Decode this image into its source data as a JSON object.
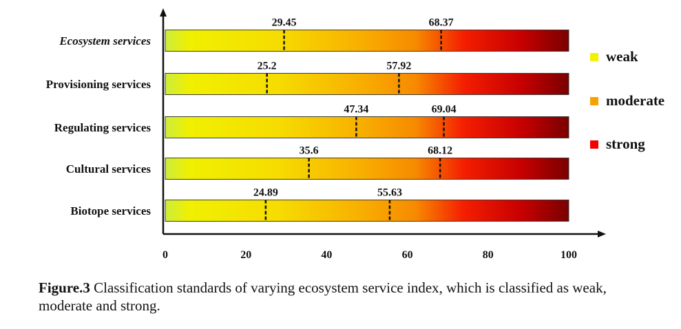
{
  "chart_data": {
    "type": "bar",
    "orientation": "horizontal",
    "categories": [
      "Ecosystem services",
      "Provisioning services",
      "Regulating services",
      "Cultural services",
      "Biotope  services"
    ],
    "thresholds": [
      [
        29.45,
        68.37
      ],
      [
        25.2,
        57.92
      ],
      [
        47.34,
        69.04
      ],
      [
        35.6,
        68.12
      ],
      [
        24.89,
        55.63
      ]
    ],
    "threshold_labels": [
      [
        "29.45",
        "68.37"
      ],
      [
        "25.2",
        "57.92"
      ],
      [
        "47.34",
        "69.04"
      ],
      [
        "35.6",
        "68.12"
      ],
      [
        "24.89",
        "55.63"
      ]
    ],
    "xlim": [
      0,
      100
    ],
    "xticks": [
      0,
      20,
      40,
      60,
      80,
      100
    ],
    "legend": [
      {
        "name": "weak",
        "color": "#f2f200"
      },
      {
        "name": "moderate",
        "color": "#f7a200"
      },
      {
        "name": "strong",
        "color": "#f40000"
      }
    ],
    "legend_position": "right",
    "grid": false
  },
  "caption": {
    "lead": "Figure.3",
    "text": " Classification standards of varying ecosystem service index, which is classified as weak, moderate and strong."
  }
}
